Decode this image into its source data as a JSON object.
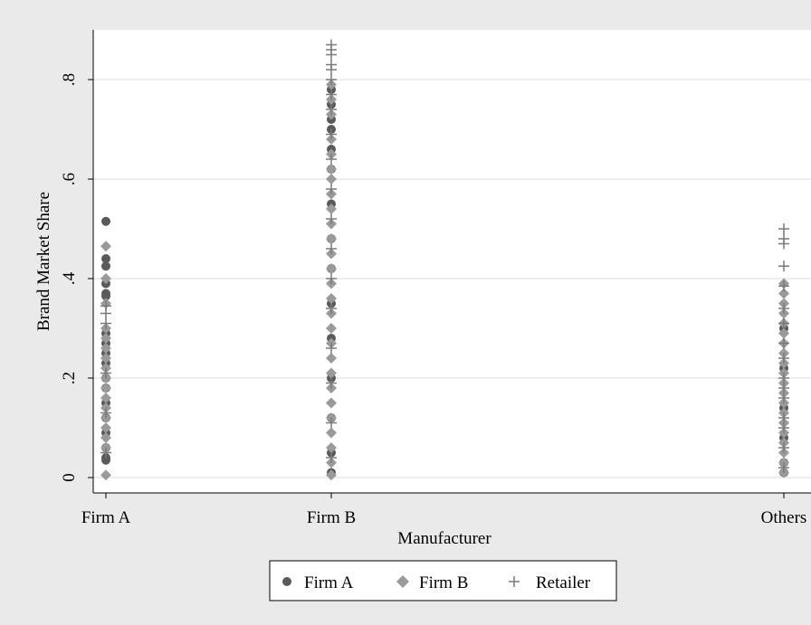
{
  "chart_data": {
    "type": "scatter",
    "title": "",
    "xlabel": "Manufacturer",
    "ylabel": "Brand Market Share",
    "x_categories": [
      "Firm A",
      "Firm B",
      "Others"
    ],
    "x_tick_labels": [
      "Firm A",
      "Firm B",
      "Others"
    ],
    "ylim": [
      0,
      0.88
    ],
    "y_ticks": [
      0,
      0.2,
      0.4,
      0.6,
      0.8
    ],
    "y_tick_labels": [
      "0",
      ".2",
      ".4",
      ".6",
      ".8"
    ],
    "grid": true,
    "legend_position": "bottom-center",
    "colors": {
      "firm_a": "#5a5a5a",
      "firm_b": "#9a9a9a",
      "retailer": "#7a7a7a",
      "background": "#eaeaea",
      "plot": "#ffffff"
    },
    "series": [
      {
        "name": "Firm A",
        "marker": "circle",
        "points": [
          {
            "x": "Firm A",
            "y": 0.515
          },
          {
            "x": "Firm A",
            "y": 0.44
          },
          {
            "x": "Firm A",
            "y": 0.425
          },
          {
            "x": "Firm A",
            "y": 0.39
          },
          {
            "x": "Firm A",
            "y": 0.37
          },
          {
            "x": "Firm A",
            "y": 0.365
          },
          {
            "x": "Firm A",
            "y": 0.29
          },
          {
            "x": "Firm A",
            "y": 0.27
          },
          {
            "x": "Firm A",
            "y": 0.25
          },
          {
            "x": "Firm A",
            "y": 0.23
          },
          {
            "x": "Firm A",
            "y": 0.2
          },
          {
            "x": "Firm A",
            "y": 0.18
          },
          {
            "x": "Firm A",
            "y": 0.15
          },
          {
            "x": "Firm A",
            "y": 0.12
          },
          {
            "x": "Firm A",
            "y": 0.09
          },
          {
            "x": "Firm A",
            "y": 0.06
          },
          {
            "x": "Firm A",
            "y": 0.04
          },
          {
            "x": "Firm A",
            "y": 0.035
          },
          {
            "x": "Firm B",
            "y": 0.78
          },
          {
            "x": "Firm B",
            "y": 0.75
          },
          {
            "x": "Firm B",
            "y": 0.72
          },
          {
            "x": "Firm B",
            "y": 0.7
          },
          {
            "x": "Firm B",
            "y": 0.66
          },
          {
            "x": "Firm B",
            "y": 0.62
          },
          {
            "x": "Firm B",
            "y": 0.55
          },
          {
            "x": "Firm B",
            "y": 0.48
          },
          {
            "x": "Firm B",
            "y": 0.42
          },
          {
            "x": "Firm B",
            "y": 0.35
          },
          {
            "x": "Firm B",
            "y": 0.28
          },
          {
            "x": "Firm B",
            "y": 0.2
          },
          {
            "x": "Firm B",
            "y": 0.12
          },
          {
            "x": "Firm B",
            "y": 0.05
          },
          {
            "x": "Firm B",
            "y": 0.01
          },
          {
            "x": "Others",
            "y": 0.3
          },
          {
            "x": "Others",
            "y": 0.22
          },
          {
            "x": "Others",
            "y": 0.14
          },
          {
            "x": "Others",
            "y": 0.08
          },
          {
            "x": "Others",
            "y": 0.03
          },
          {
            "x": "Others",
            "y": 0.01
          }
        ]
      },
      {
        "name": "Firm B",
        "marker": "diamond",
        "points": [
          {
            "x": "Firm A",
            "y": 0.465
          },
          {
            "x": "Firm A",
            "y": 0.4
          },
          {
            "x": "Firm A",
            "y": 0.35
          },
          {
            "x": "Firm A",
            "y": 0.3
          },
          {
            "x": "Firm A",
            "y": 0.28
          },
          {
            "x": "Firm A",
            "y": 0.26
          },
          {
            "x": "Firm A",
            "y": 0.24
          },
          {
            "x": "Firm A",
            "y": 0.22
          },
          {
            "x": "Firm A",
            "y": 0.2
          },
          {
            "x": "Firm A",
            "y": 0.18
          },
          {
            "x": "Firm A",
            "y": 0.16
          },
          {
            "x": "Firm A",
            "y": 0.14
          },
          {
            "x": "Firm A",
            "y": 0.12
          },
          {
            "x": "Firm A",
            "y": 0.1
          },
          {
            "x": "Firm A",
            "y": 0.08
          },
          {
            "x": "Firm A",
            "y": 0.06
          },
          {
            "x": "Firm A",
            "y": 0.005
          },
          {
            "x": "Firm B",
            "y": 0.79
          },
          {
            "x": "Firm B",
            "y": 0.76
          },
          {
            "x": "Firm B",
            "y": 0.73
          },
          {
            "x": "Firm B",
            "y": 0.68
          },
          {
            "x": "Firm B",
            "y": 0.65
          },
          {
            "x": "Firm B",
            "y": 0.62
          },
          {
            "x": "Firm B",
            "y": 0.6
          },
          {
            "x": "Firm B",
            "y": 0.57
          },
          {
            "x": "Firm B",
            "y": 0.54
          },
          {
            "x": "Firm B",
            "y": 0.51
          },
          {
            "x": "Firm B",
            "y": 0.48
          },
          {
            "x": "Firm B",
            "y": 0.45
          },
          {
            "x": "Firm B",
            "y": 0.42
          },
          {
            "x": "Firm B",
            "y": 0.39
          },
          {
            "x": "Firm B",
            "y": 0.36
          },
          {
            "x": "Firm B",
            "y": 0.33
          },
          {
            "x": "Firm B",
            "y": 0.3
          },
          {
            "x": "Firm B",
            "y": 0.27
          },
          {
            "x": "Firm B",
            "y": 0.24
          },
          {
            "x": "Firm B",
            "y": 0.21
          },
          {
            "x": "Firm B",
            "y": 0.18
          },
          {
            "x": "Firm B",
            "y": 0.15
          },
          {
            "x": "Firm B",
            "y": 0.12
          },
          {
            "x": "Firm B",
            "y": 0.09
          },
          {
            "x": "Firm B",
            "y": 0.06
          },
          {
            "x": "Firm B",
            "y": 0.03
          },
          {
            "x": "Firm B",
            "y": 0.005
          },
          {
            "x": "Others",
            "y": 0.39
          },
          {
            "x": "Others",
            "y": 0.37
          },
          {
            "x": "Others",
            "y": 0.35
          },
          {
            "x": "Others",
            "y": 0.33
          },
          {
            "x": "Others",
            "y": 0.31
          },
          {
            "x": "Others",
            "y": 0.29
          },
          {
            "x": "Others",
            "y": 0.27
          },
          {
            "x": "Others",
            "y": 0.25
          },
          {
            "x": "Others",
            "y": 0.23
          },
          {
            "x": "Others",
            "y": 0.21
          },
          {
            "x": "Others",
            "y": 0.19
          },
          {
            "x": "Others",
            "y": 0.17
          },
          {
            "x": "Others",
            "y": 0.15
          },
          {
            "x": "Others",
            "y": 0.13
          },
          {
            "x": "Others",
            "y": 0.11
          },
          {
            "x": "Others",
            "y": 0.09
          },
          {
            "x": "Others",
            "y": 0.07
          },
          {
            "x": "Others",
            "y": 0.05
          },
          {
            "x": "Others",
            "y": 0.03
          },
          {
            "x": "Others",
            "y": 0.01
          }
        ]
      },
      {
        "name": "Retailer",
        "marker": "plus",
        "points": [
          {
            "x": "Firm A",
            "y": 0.345
          },
          {
            "x": "Firm A",
            "y": 0.33
          },
          {
            "x": "Firm A",
            "y": 0.31
          },
          {
            "x": "Firm A",
            "y": 0.21
          },
          {
            "x": "Firm A",
            "y": 0.13
          },
          {
            "x": "Firm A",
            "y": 0.05
          },
          {
            "x": "Firm B",
            "y": 0.87
          },
          {
            "x": "Firm B",
            "y": 0.86
          },
          {
            "x": "Firm B",
            "y": 0.85
          },
          {
            "x": "Firm B",
            "y": 0.83
          },
          {
            "x": "Firm B",
            "y": 0.82
          },
          {
            "x": "Firm B",
            "y": 0.8
          },
          {
            "x": "Firm B",
            "y": 0.77
          },
          {
            "x": "Firm B",
            "y": 0.74
          },
          {
            "x": "Firm B",
            "y": 0.69
          },
          {
            "x": "Firm B",
            "y": 0.64
          },
          {
            "x": "Firm B",
            "y": 0.58
          },
          {
            "x": "Firm B",
            "y": 0.52
          },
          {
            "x": "Firm B",
            "y": 0.46
          },
          {
            "x": "Firm B",
            "y": 0.4
          },
          {
            "x": "Firm B",
            "y": 0.34
          },
          {
            "x": "Firm B",
            "y": 0.26
          },
          {
            "x": "Firm B",
            "y": 0.19
          },
          {
            "x": "Firm B",
            "y": 0.11
          },
          {
            "x": "Firm B",
            "y": 0.04
          },
          {
            "x": "Others",
            "y": 0.5
          },
          {
            "x": "Others",
            "y": 0.48
          },
          {
            "x": "Others",
            "y": 0.47
          },
          {
            "x": "Others",
            "y": 0.425
          },
          {
            "x": "Others",
            "y": 0.385
          },
          {
            "x": "Others",
            "y": 0.34
          },
          {
            "x": "Others",
            "y": 0.31
          },
          {
            "x": "Others",
            "y": 0.27
          },
          {
            "x": "Others",
            "y": 0.24
          },
          {
            "x": "Others",
            "y": 0.2
          },
          {
            "x": "Others",
            "y": 0.18
          },
          {
            "x": "Others",
            "y": 0.16
          },
          {
            "x": "Others",
            "y": 0.12
          },
          {
            "x": "Others",
            "y": 0.1
          },
          {
            "x": "Others",
            "y": 0.06
          },
          {
            "x": "Others",
            "y": 0.02
          }
        ]
      }
    ]
  }
}
